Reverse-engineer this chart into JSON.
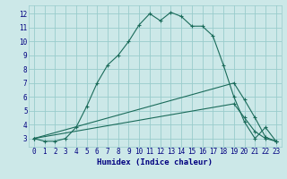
{
  "xlabel": "Humidex (Indice chaleur)",
  "bg_color": "#cce8e8",
  "line_color": "#1a6b5a",
  "grid_color": "#99cccc",
  "xlim": [
    -0.5,
    23.5
  ],
  "ylim": [
    2.4,
    12.6
  ],
  "xticks": [
    0,
    1,
    2,
    3,
    4,
    5,
    6,
    7,
    8,
    9,
    10,
    11,
    12,
    13,
    14,
    15,
    16,
    17,
    18,
    19,
    20,
    21,
    22,
    23
  ],
  "yticks": [
    3,
    4,
    5,
    6,
    7,
    8,
    9,
    10,
    11,
    12
  ],
  "curve1_x": [
    0,
    1,
    2,
    3,
    4,
    5,
    6,
    7,
    8,
    9,
    10,
    11,
    12,
    13,
    14,
    15,
    16,
    17,
    18,
    19,
    20,
    21,
    22,
    23
  ],
  "curve1_y": [
    3.0,
    2.8,
    2.8,
    3.0,
    3.8,
    5.3,
    7.0,
    8.3,
    9.0,
    10.0,
    11.2,
    12.0,
    11.5,
    12.1,
    11.8,
    11.1,
    11.1,
    10.4,
    8.3,
    6.0,
    4.2,
    3.0,
    3.8,
    2.8
  ],
  "curve2_x": [
    0,
    19,
    20,
    21,
    22,
    23
  ],
  "curve2_y": [
    3.0,
    7.0,
    5.8,
    4.5,
    3.1,
    2.8
  ],
  "curve3_x": [
    0,
    19,
    20,
    21,
    22,
    23
  ],
  "curve3_y": [
    3.0,
    5.5,
    4.5,
    3.5,
    3.0,
    2.8
  ],
  "xlabel_fontsize": 6.5,
  "tick_fontsize": 5.5
}
